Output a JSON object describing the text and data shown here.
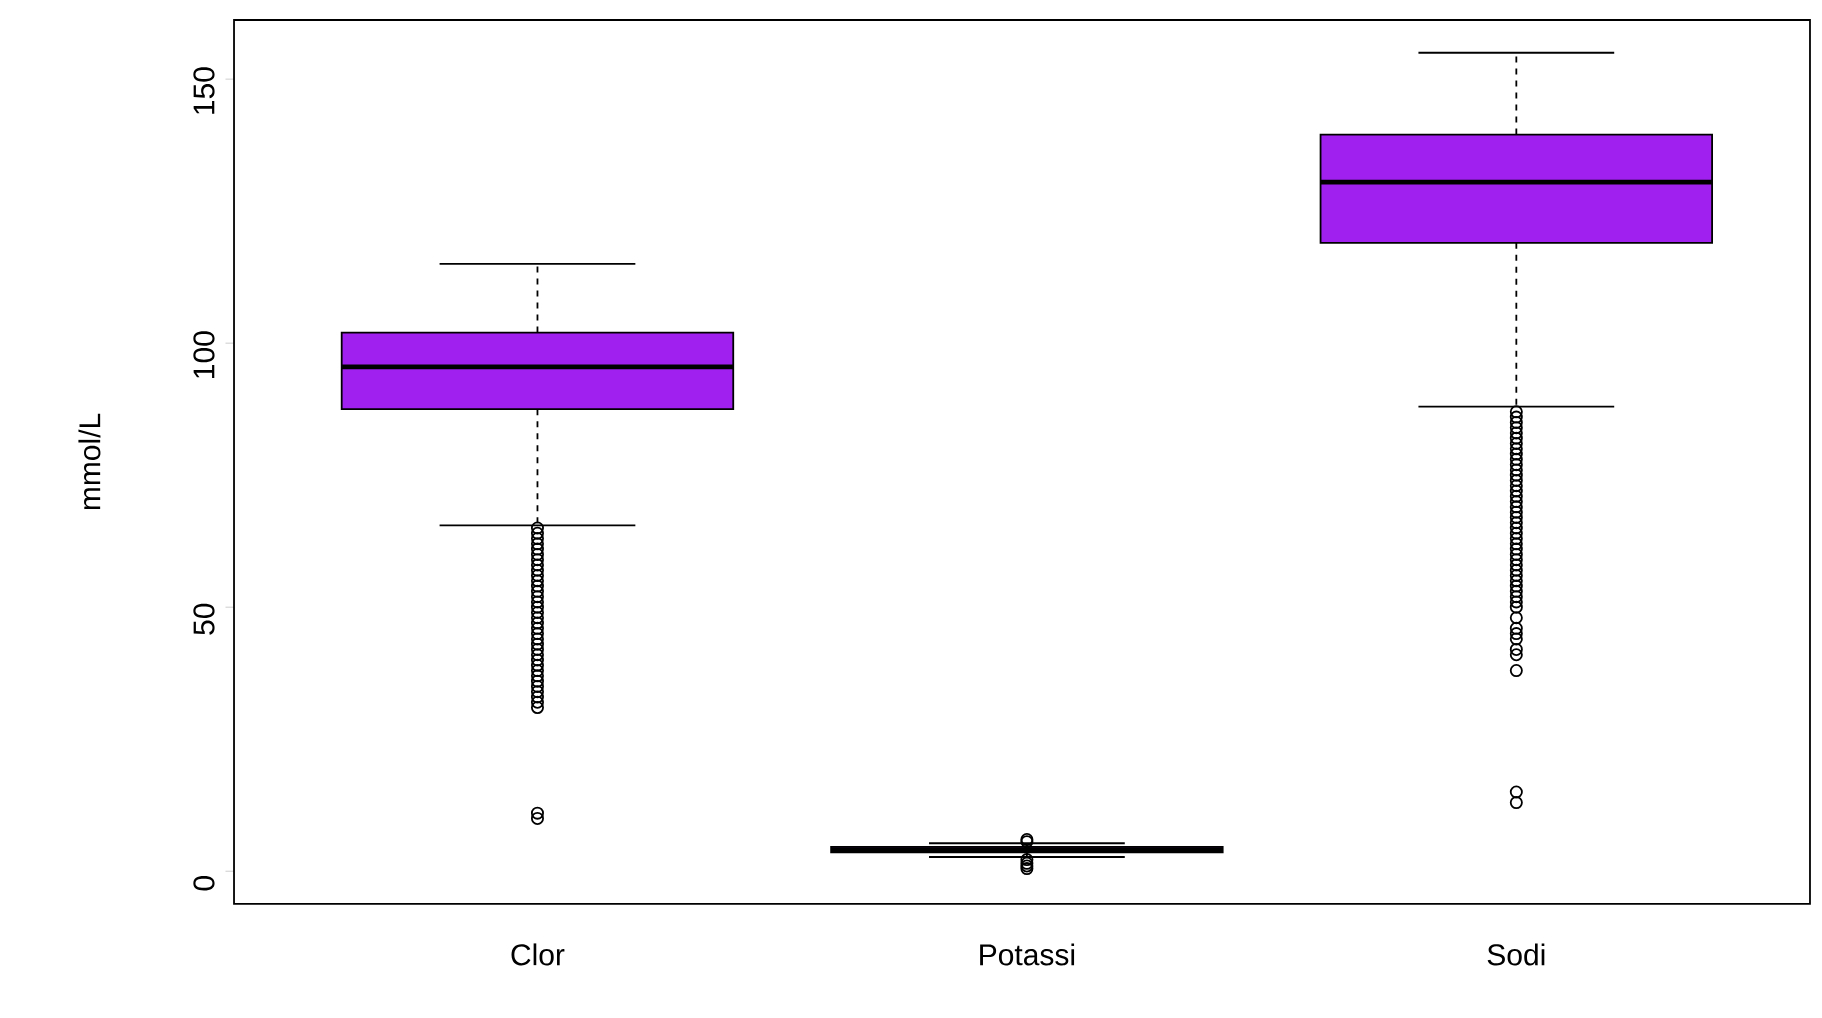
{
  "chart_data": {
    "type": "box",
    "ylabel": "mmol/L",
    "categories": [
      "Clor",
      "Potassi",
      "Sodi"
    ],
    "color": "#a020f0",
    "boxes": [
      {
        "low": 65.5,
        "q1": 87.5,
        "median": 95.5,
        "q3": 102,
        "high": 115,
        "outliers": [
          65,
          64,
          63,
          62,
          61,
          60,
          59,
          58,
          57,
          56,
          55,
          54,
          53,
          52,
          51,
          50,
          49,
          48,
          47,
          46,
          45,
          44,
          43,
          42,
          41,
          40,
          39,
          38,
          37,
          36,
          35,
          34,
          33,
          32,
          31,
          11,
          10
        ]
      },
      {
        "low": 2.7,
        "q1": 3.6,
        "median": 4.1,
        "q3": 4.6,
        "high": 5.3,
        "outliers": [
          6,
          5.6,
          2.2,
          1.5,
          1,
          0.5
        ]
      },
      {
        "low": 88,
        "q1": 119,
        "median": 130.5,
        "q3": 139.5,
        "high": 155,
        "outliers": [
          87,
          86,
          85,
          84,
          83,
          82,
          81,
          80,
          79,
          78,
          77,
          76,
          75,
          74,
          73,
          72,
          71,
          70,
          69,
          68,
          67,
          66,
          65,
          64,
          63,
          62,
          61,
          60,
          59,
          58,
          57,
          56,
          55,
          54,
          53,
          52,
          51,
          50,
          48,
          46,
          45,
          44,
          42,
          41,
          38,
          15,
          13
        ]
      }
    ],
    "ylim": [
      -6.2,
      161.2
    ],
    "yticks": [
      0,
      50,
      100,
      150
    ],
    "grid": false,
    "marker": "circle"
  }
}
